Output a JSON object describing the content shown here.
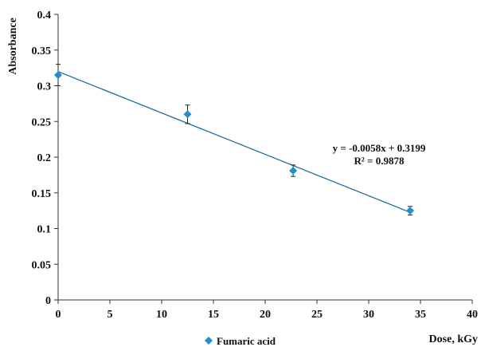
{
  "chart_data": {
    "type": "scatter",
    "title": "",
    "xlabel": "Dose, kGy",
    "ylabel": "Absorbance",
    "xlim": [
      0,
      40
    ],
    "ylim": [
      0,
      0.4
    ],
    "x_ticks": [
      "0",
      "5",
      "10",
      "15",
      "20",
      "25",
      "30",
      "35",
      "40"
    ],
    "y_ticks": [
      "0",
      "0.05",
      "0.1",
      "0.15",
      "0.2",
      "0.25",
      "0.3",
      "0.35",
      "0.4"
    ],
    "grid": false,
    "legend_position": "bottom-left",
    "series": [
      {
        "name": "Fumaric acid",
        "color": "#1f8fd0",
        "marker": "diamond",
        "x": [
          0,
          12.5,
          22.7,
          34
        ],
        "y": [
          0.315,
          0.26,
          0.181,
          0.125
        ],
        "error": [
          0.015,
          0.013,
          0.008,
          0.006
        ]
      }
    ],
    "trendline": {
      "type": "linear",
      "slope": -0.0058,
      "intercept": 0.3199,
      "x_range": [
        0,
        34
      ],
      "color": "#1f6f9c",
      "equation": "y = -0.0058x + 0.3199",
      "r_squared": "R² = 0.9878"
    }
  }
}
